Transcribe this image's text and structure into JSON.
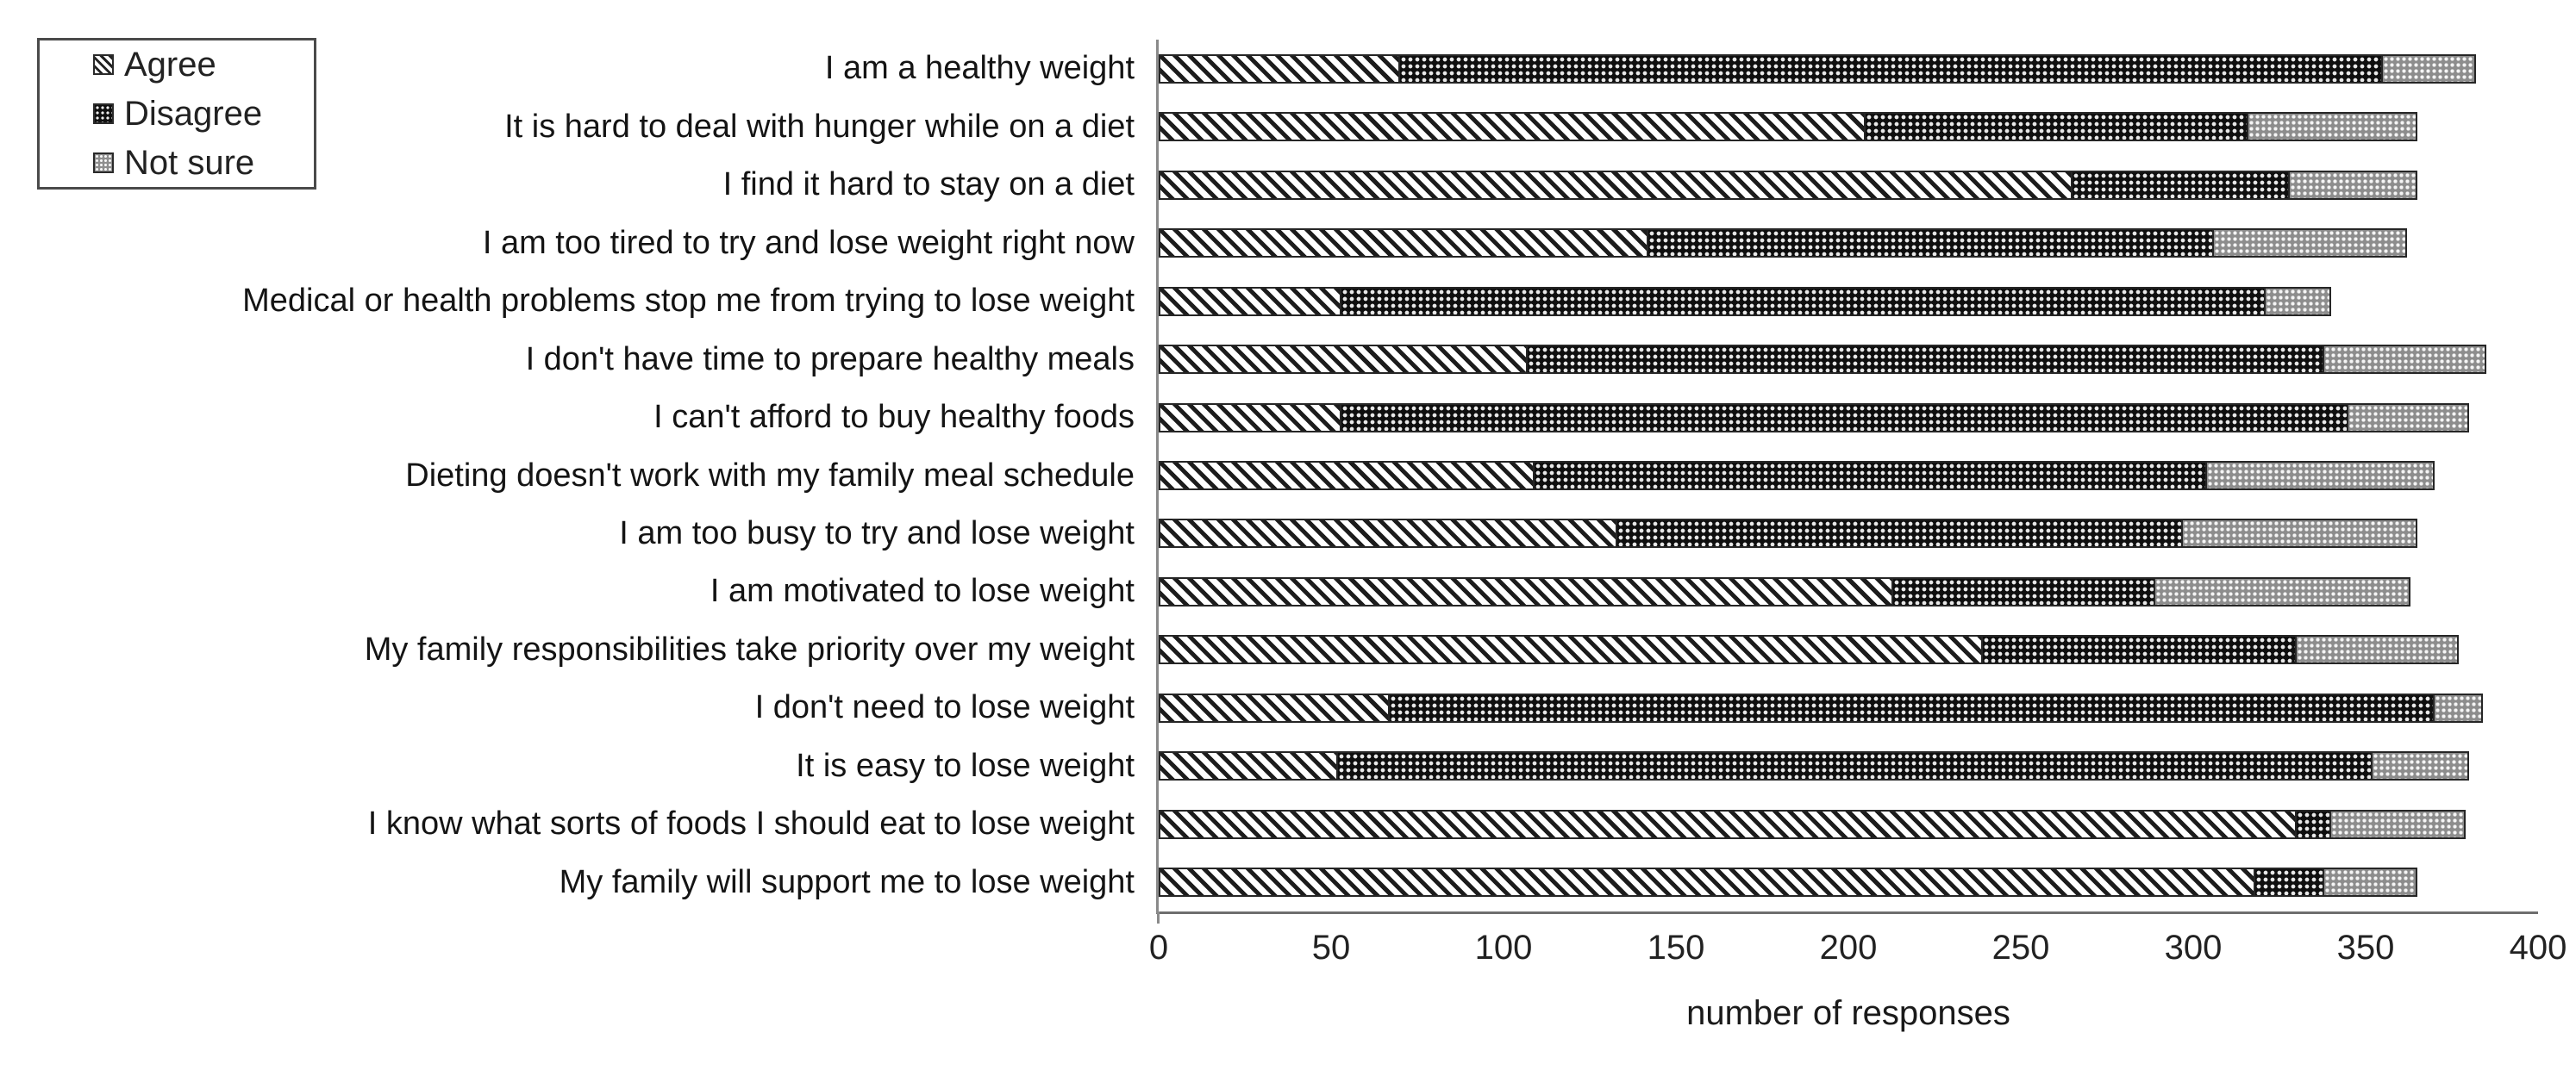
{
  "legend": {
    "items": [
      {
        "label": "Agree",
        "swatch": "diagonal-hatch"
      },
      {
        "label": "Disagree",
        "swatch": "dark-checker"
      },
      {
        "label": "Not sure",
        "swatch": "gray-dots"
      }
    ]
  },
  "chart_data": {
    "type": "bar",
    "orientation": "horizontal",
    "stacked": true,
    "title": "",
    "xlabel": "number of responses",
    "ylabel": "",
    "xlim": [
      0,
      400
    ],
    "xticks": [
      0,
      50,
      100,
      150,
      200,
      250,
      300,
      350,
      400
    ],
    "grid": false,
    "legend_position": "top-left",
    "categories": [
      "I am a healthy weight",
      "It is hard to deal with hunger while on a diet",
      "I find it hard to stay on a diet",
      "I am too tired to try and lose weight right now",
      "Medical or health problems stop me from trying to lose weight",
      "I don't have time to prepare healthy meals",
      "I can't afford to buy healthy foods",
      "Dieting doesn't work with my family meal schedule",
      "I am too busy to try and lose weight",
      "I am motivated to lose weight",
      "My family responsibilities take priority over my weight",
      "I don't need to lose weight",
      "It is easy to lose weight",
      "I know what sorts of foods I should eat to lose weight",
      "My family will support me to lose weight"
    ],
    "series": [
      {
        "name": "Agree",
        "pattern": "diagonal-hatch",
        "values": [
          70,
          205,
          265,
          142,
          53,
          107,
          53,
          109,
          133,
          213,
          239,
          67,
          52,
          330,
          318
        ]
      },
      {
        "name": "Disagree",
        "pattern": "dark-checker",
        "values": [
          285,
          111,
          63,
          164,
          268,
          231,
          292,
          195,
          164,
          76,
          91,
          303,
          300,
          10,
          20
        ]
      },
      {
        "name": "Not sure",
        "pattern": "gray-dots",
        "values": [
          27,
          49,
          37,
          56,
          19,
          47,
          35,
          66,
          68,
          74,
          47,
          14,
          28,
          39,
          27
        ]
      }
    ]
  }
}
